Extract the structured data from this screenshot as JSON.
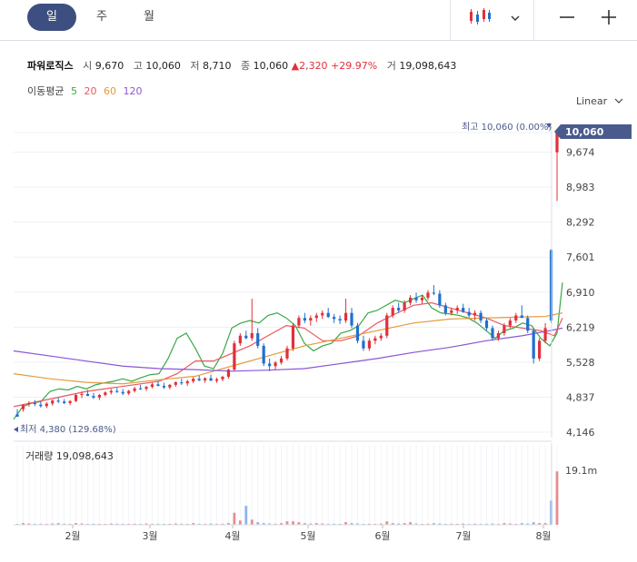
{
  "tabs": [
    {
      "label": "일",
      "active": true
    },
    {
      "label": "주",
      "active": false
    },
    {
      "label": "월",
      "active": false
    }
  ],
  "toolbar": {
    "chart_icon": "candlestick-icon",
    "dropdown_icon": "chevron-down-icon",
    "zoom_out": "minus-icon",
    "zoom_in": "plus-icon"
  },
  "stock": {
    "name": "파워로직스",
    "open_label": "시",
    "open": "9,670",
    "high_label": "고",
    "high": "10,060",
    "low_label": "저",
    "low": "8,710",
    "close_label": "종",
    "close": "10,060",
    "change": "▲2,320",
    "change_pct": "+29.97%",
    "volume_label": "거",
    "volume": "19,098,643"
  },
  "ma": {
    "label": "이동평균",
    "periods": [
      "5",
      "20",
      "60",
      "120"
    ],
    "colors": [
      "#39a845",
      "#e8595f",
      "#e69a3b",
      "#8a55d6"
    ]
  },
  "scale_mode": "Linear",
  "colors": {
    "up": "#e0303a",
    "down": "#1f6fd1",
    "accent": "#4a5a8c"
  },
  "chart_data": {
    "type": "candlestick",
    "y_ticks": [
      10060,
      9674,
      8983,
      8292,
      7601,
      6910,
      6219,
      5528,
      4837,
      4146
    ],
    "y_tick_labels": [
      "10,060",
      "9,674",
      "8,983",
      "8,292",
      "7,601",
      "6,910",
      "6,219",
      "5,528",
      "4,837",
      "4,146"
    ],
    "x_tick_labels": [
      "2월",
      "3월",
      "4월",
      "5월",
      "6월",
      "7월",
      "8월"
    ],
    "current_price_label": "10,060",
    "high_annotation": "최고 10,060 (0.00%)",
    "low_annotation": "최저 4,380 (129.68%)",
    "volume_label": "거래량 19,098,643",
    "volume_axis_label": "19.1m",
    "volume_max": 19098643,
    "highlight": {
      "open": 9670,
      "high": 10060,
      "low": 8710,
      "close": 10060
    },
    "series": [
      {
        "name": "5",
        "color": "#39a845",
        "points": [
          [
            0,
            4400
          ],
          [
            10,
            4650
          ],
          [
            20,
            4720
          ],
          [
            30,
            4750
          ],
          [
            40,
            4950
          ],
          [
            50,
            5000
          ],
          [
            60,
            4980
          ],
          [
            70,
            5050
          ],
          [
            80,
            5000
          ],
          [
            90,
            5080
          ],
          [
            100,
            5120
          ],
          [
            110,
            5150
          ],
          [
            120,
            5200
          ],
          [
            130,
            5150
          ],
          [
            140,
            5220
          ],
          [
            150,
            5280
          ],
          [
            160,
            5300
          ],
          [
            170,
            5600
          ],
          [
            180,
            6000
          ],
          [
            190,
            6100
          ],
          [
            200,
            5800
          ],
          [
            210,
            5450
          ],
          [
            220,
            5400
          ],
          [
            230,
            5700
          ],
          [
            240,
            6200
          ],
          [
            250,
            6300
          ],
          [
            260,
            6350
          ],
          [
            270,
            6300
          ],
          [
            280,
            6450
          ],
          [
            290,
            6500
          ],
          [
            300,
            6400
          ],
          [
            310,
            6250
          ],
          [
            320,
            5900
          ],
          [
            330,
            5750
          ],
          [
            340,
            5850
          ],
          [
            350,
            5900
          ],
          [
            360,
            6100
          ],
          [
            370,
            6150
          ],
          [
            380,
            6250
          ],
          [
            390,
            6500
          ],
          [
            400,
            6550
          ],
          [
            410,
            6650
          ],
          [
            420,
            6750
          ],
          [
            430,
            6700
          ],
          [
            440,
            6780
          ],
          [
            450,
            6850
          ],
          [
            460,
            6600
          ],
          [
            470,
            6500
          ],
          [
            480,
            6480
          ],
          [
            490,
            6450
          ],
          [
            500,
            6400
          ],
          [
            510,
            6300
          ],
          [
            520,
            6150
          ],
          [
            530,
            6000
          ],
          [
            540,
            6150
          ],
          [
            550,
            6200
          ],
          [
            560,
            6300
          ],
          [
            570,
            6250
          ],
          [
            580,
            6000
          ],
          [
            590,
            5850
          ],
          [
            598,
            6100
          ],
          [
            604,
            7100
          ]
        ]
      },
      {
        "name": "20",
        "color": "#e8595f",
        "points": [
          [
            0,
            4650
          ],
          [
            40,
            4800
          ],
          [
            80,
            4950
          ],
          [
            120,
            5050
          ],
          [
            160,
            5150
          ],
          [
            180,
            5300
          ],
          [
            200,
            5550
          ],
          [
            220,
            5550
          ],
          [
            240,
            5700
          ],
          [
            260,
            5850
          ],
          [
            280,
            6050
          ],
          [
            300,
            6250
          ],
          [
            320,
            6200
          ],
          [
            340,
            5950
          ],
          [
            360,
            5950
          ],
          [
            380,
            6050
          ],
          [
            400,
            6300
          ],
          [
            420,
            6480
          ],
          [
            440,
            6650
          ],
          [
            460,
            6700
          ],
          [
            480,
            6600
          ],
          [
            500,
            6500
          ],
          [
            520,
            6400
          ],
          [
            540,
            6250
          ],
          [
            560,
            6200
          ],
          [
            580,
            6150
          ],
          [
            595,
            6050
          ],
          [
            604,
            6400
          ]
        ]
      },
      {
        "name": "60",
        "color": "#e69a3b",
        "points": [
          [
            0,
            5300
          ],
          [
            40,
            5200
          ],
          [
            80,
            5130
          ],
          [
            120,
            5100
          ],
          [
            160,
            5180
          ],
          [
            200,
            5250
          ],
          [
            240,
            5450
          ],
          [
            280,
            5650
          ],
          [
            320,
            5850
          ],
          [
            360,
            6000
          ],
          [
            400,
            6150
          ],
          [
            440,
            6300
          ],
          [
            480,
            6380
          ],
          [
            520,
            6400
          ],
          [
            560,
            6420
          ],
          [
            585,
            6430
          ],
          [
            604,
            6500
          ]
        ]
      },
      {
        "name": "120",
        "color": "#8a55d6",
        "points": [
          [
            0,
            5750
          ],
          [
            40,
            5650
          ],
          [
            80,
            5550
          ],
          [
            120,
            5450
          ],
          [
            160,
            5400
          ],
          [
            200,
            5380
          ],
          [
            240,
            5350
          ],
          [
            280,
            5370
          ],
          [
            320,
            5400
          ],
          [
            360,
            5500
          ],
          [
            400,
            5600
          ],
          [
            440,
            5720
          ],
          [
            480,
            5820
          ],
          [
            520,
            5950
          ],
          [
            560,
            6050
          ],
          [
            590,
            6150
          ],
          [
            604,
            6200
          ]
        ]
      }
    ],
    "candles": [
      [
        4500,
        4600,
        4450,
        4450
      ],
      [
        4600,
        4700,
        4550,
        4680
      ],
      [
        4700,
        4760,
        4650,
        4720
      ],
      [
        4720,
        4780,
        4660,
        4700
      ],
      [
        4690,
        4750,
        4630,
        4660
      ],
      [
        4660,
        4740,
        4620,
        4710
      ],
      [
        4710,
        4790,
        4670,
        4770
      ],
      [
        4770,
        4830,
        4720,
        4750
      ],
      [
        4750,
        4800,
        4700,
        4720
      ],
      [
        4720,
        4780,
        4680,
        4760
      ],
      [
        4760,
        4900,
        4740,
        4880
      ],
      [
        4880,
        4950,
        4820,
        4900
      ],
      [
        4900,
        4980,
        4860,
        4860
      ],
      [
        4860,
        4920,
        4800,
        4830
      ],
      [
        4830,
        4900,
        4780,
        4880
      ],
      [
        4880,
        4950,
        4850,
        4930
      ],
      [
        4930,
        5000,
        4890,
        4960
      ],
      [
        4960,
        5020,
        4920,
        4940
      ],
      [
        4940,
        5000,
        4880,
        4910
      ],
      [
        4910,
        4980,
        4880,
        4960
      ],
      [
        4960,
        5040,
        4930,
        5010
      ],
      [
        5010,
        5080,
        4980,
        5000
      ],
      [
        5000,
        5060,
        4960,
        5040
      ],
      [
        5040,
        5120,
        5010,
        5090
      ],
      [
        5090,
        5160,
        5050,
        5060
      ],
      [
        5060,
        5120,
        5000,
        5030
      ],
      [
        5030,
        5100,
        4990,
        5080
      ],
      [
        5080,
        5150,
        5040,
        5130
      ],
      [
        5130,
        5200,
        5080,
        5110
      ],
      [
        5110,
        5180,
        5060,
        5150
      ],
      [
        5150,
        5230,
        5110,
        5200
      ],
      [
        5200,
        5260,
        5150,
        5170
      ],
      [
        5170,
        5230,
        5120,
        5210
      ],
      [
        5210,
        5280,
        5170,
        5160
      ],
      [
        5160,
        5220,
        5120,
        5190
      ],
      [
        5190,
        5260,
        5150,
        5240
      ],
      [
        5240,
        5400,
        5200,
        5380
      ],
      [
        5380,
        5950,
        5350,
        5900
      ],
      [
        5900,
        6100,
        5850,
        6050
      ],
      [
        6050,
        6150,
        5980,
        6000
      ],
      [
        6000,
        6780,
        5950,
        6100
      ],
      [
        6100,
        6200,
        5800,
        5850
      ],
      [
        5850,
        5900,
        5450,
        5500
      ],
      [
        5500,
        5600,
        5350,
        5450
      ],
      [
        5450,
        5550,
        5380,
        5520
      ],
      [
        5520,
        5650,
        5480,
        5600
      ],
      [
        5600,
        5850,
        5560,
        5800
      ],
      [
        5800,
        6300,
        5750,
        6250
      ],
      [
        6250,
        6450,
        6200,
        6400
      ],
      [
        6400,
        6500,
        6300,
        6350
      ],
      [
        6350,
        6450,
        6250,
        6400
      ],
      [
        6400,
        6500,
        6320,
        6450
      ],
      [
        6450,
        6550,
        6380,
        6500
      ],
      [
        6500,
        6600,
        6400,
        6420
      ],
      [
        6420,
        6480,
        6300,
        6380
      ],
      [
        6380,
        6450,
        6280,
        6350
      ],
      [
        6350,
        6780,
        6300,
        6500
      ],
      [
        6500,
        6600,
        6200,
        6250
      ],
      [
        6250,
        6300,
        5900,
        5950
      ],
      [
        5950,
        6050,
        5750,
        5800
      ],
      [
        5800,
        6000,
        5750,
        5950
      ],
      [
        5950,
        6050,
        5880,
        6000
      ],
      [
        6000,
        6100,
        5950,
        6050
      ],
      [
        6050,
        6500,
        6000,
        6450
      ],
      [
        6450,
        6650,
        6400,
        6600
      ],
      [
        6600,
        6700,
        6500,
        6550
      ],
      [
        6550,
        6750,
        6500,
        6700
      ],
      [
        6700,
        6850,
        6650,
        6800
      ],
      [
        6800,
        6900,
        6700,
        6750
      ],
      [
        6750,
        6850,
        6680,
        6800
      ],
      [
        6800,
        6950,
        6750,
        6900
      ],
      [
        6900,
        7050,
        6850,
        6880
      ],
      [
        6880,
        6950,
        6600,
        6650
      ],
      [
        6650,
        6700,
        6450,
        6500
      ],
      [
        6500,
        6600,
        6450,
        6550
      ],
      [
        6550,
        6650,
        6480,
        6600
      ],
      [
        6600,
        6680,
        6500,
        6520
      ],
      [
        6520,
        6600,
        6400,
        6450
      ],
      [
        6450,
        6550,
        6350,
        6500
      ],
      [
        6500,
        6550,
        6300,
        6350
      ],
      [
        6350,
        6400,
        6150,
        6200
      ],
      [
        6200,
        6250,
        5950,
        6000
      ],
      [
        6000,
        6150,
        5950,
        6100
      ],
      [
        6100,
        6300,
        6050,
        6250
      ],
      [
        6250,
        6400,
        6200,
        6350
      ],
      [
        6350,
        6500,
        6300,
        6450
      ],
      [
        6450,
        6650,
        6400,
        6400
      ],
      [
        6400,
        6450,
        6100,
        6150
      ],
      [
        6150,
        6200,
        5500,
        5600
      ],
      [
        5600,
        6000,
        5550,
        5950
      ],
      [
        5950,
        6300,
        5900,
        6200
      ],
      [
        7740,
        7760,
        6300,
        6350
      ],
      [
        9670,
        10060,
        8710,
        10060
      ]
    ],
    "volumes": [
      0.01,
      0.02,
      0.015,
      0.01,
      0.012,
      0.01,
      0.015,
      0.02,
      0.012,
      0.01,
      0.02,
      0.015,
      0.01,
      0.012,
      0.01,
      0.01,
      0.015,
      0.012,
      0.01,
      0.01,
      0.012,
      0.01,
      0.015,
      0.01,
      0.012,
      0.01,
      0.01,
      0.015,
      0.012,
      0.01,
      0.02,
      0.012,
      0.01,
      0.015,
      0.01,
      0.012,
      0.02,
      0.14,
      0.05,
      0.22,
      0.06,
      0.03,
      0.02,
      0.015,
      0.012,
      0.02,
      0.04,
      0.04,
      0.03,
      0.02,
      0.015,
      0.02,
      0.015,
      0.01,
      0.012,
      0.01,
      0.03,
      0.02,
      0.015,
      0.01,
      0.012,
      0.01,
      0.015,
      0.04,
      0.02,
      0.015,
      0.02,
      0.03,
      0.015,
      0.01,
      0.012,
      0.02,
      0.015,
      0.01,
      0.012,
      0.01,
      0.015,
      0.01,
      0.012,
      0.01,
      0.012,
      0.015,
      0.01,
      0.02,
      0.015,
      0.01,
      0.02,
      0.015,
      0.03,
      0.02,
      0.02,
      0.28,
      0.62
    ]
  }
}
